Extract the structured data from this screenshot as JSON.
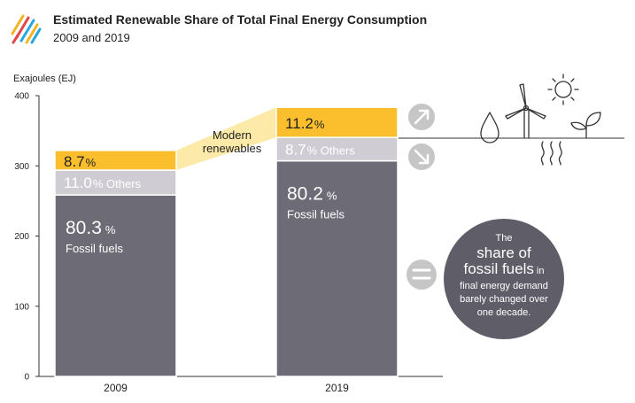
{
  "header": {
    "title": "Estimated Renewable Share of Total Final Energy Consumption",
    "subtitle": "2009 and 2019"
  },
  "colors": {
    "modern_renewables": "#fbbf2d",
    "others": "#cfcdd3",
    "fossil": "#6d6b75",
    "connector": "#fdeaa8",
    "trend_badge": "#c6c6c6",
    "callout": "#5f5d67",
    "logo": [
      "#f0b429",
      "#e0474c",
      "#2aa6df"
    ]
  },
  "chart_data": {
    "type": "bar",
    "stacked": true,
    "categories": [
      "2009",
      "2019"
    ],
    "ylabel": "Exajoules (EJ)",
    "ylim": [
      0,
      400
    ],
    "yticks": [
      0,
      100,
      200,
      300,
      400
    ],
    "grid": false,
    "totals": [
      322,
      383
    ],
    "series": [
      {
        "key": "fossil",
        "name": "Fossil fuels",
        "shares": [
          80.3,
          80.2
        ],
        "share_labels": [
          "80.3",
          "80.2"
        ]
      },
      {
        "key": "others",
        "name": "Others",
        "shares": [
          11.0,
          8.7
        ],
        "share_labels": [
          "11.0",
          "8.7"
        ]
      },
      {
        "key": "modern",
        "shares": [
          8.7,
          11.2
        ],
        "share_labels": [
          "8.7",
          "11.2"
        ]
      }
    ],
    "annotations": {
      "modern_renewables_line1": "Modern",
      "modern_renewables_line2": "renewables",
      "trend_icons": [
        "arrow-up-right",
        "arrow-down-right",
        "equals"
      ]
    }
  },
  "callout": {
    "line1": "The",
    "line2": "share of",
    "line3a": "fossil fuels",
    "line3b": " in",
    "line4": "final energy demand",
    "line5": "barely changed over",
    "line6": "one decade."
  },
  "pct_symbol": "%",
  "icons": [
    "logo-stripes-icon",
    "water-drop-icon",
    "wind-turbine-icon",
    "sun-icon",
    "heat-waves-icon",
    "plant-sprout-icon"
  ]
}
